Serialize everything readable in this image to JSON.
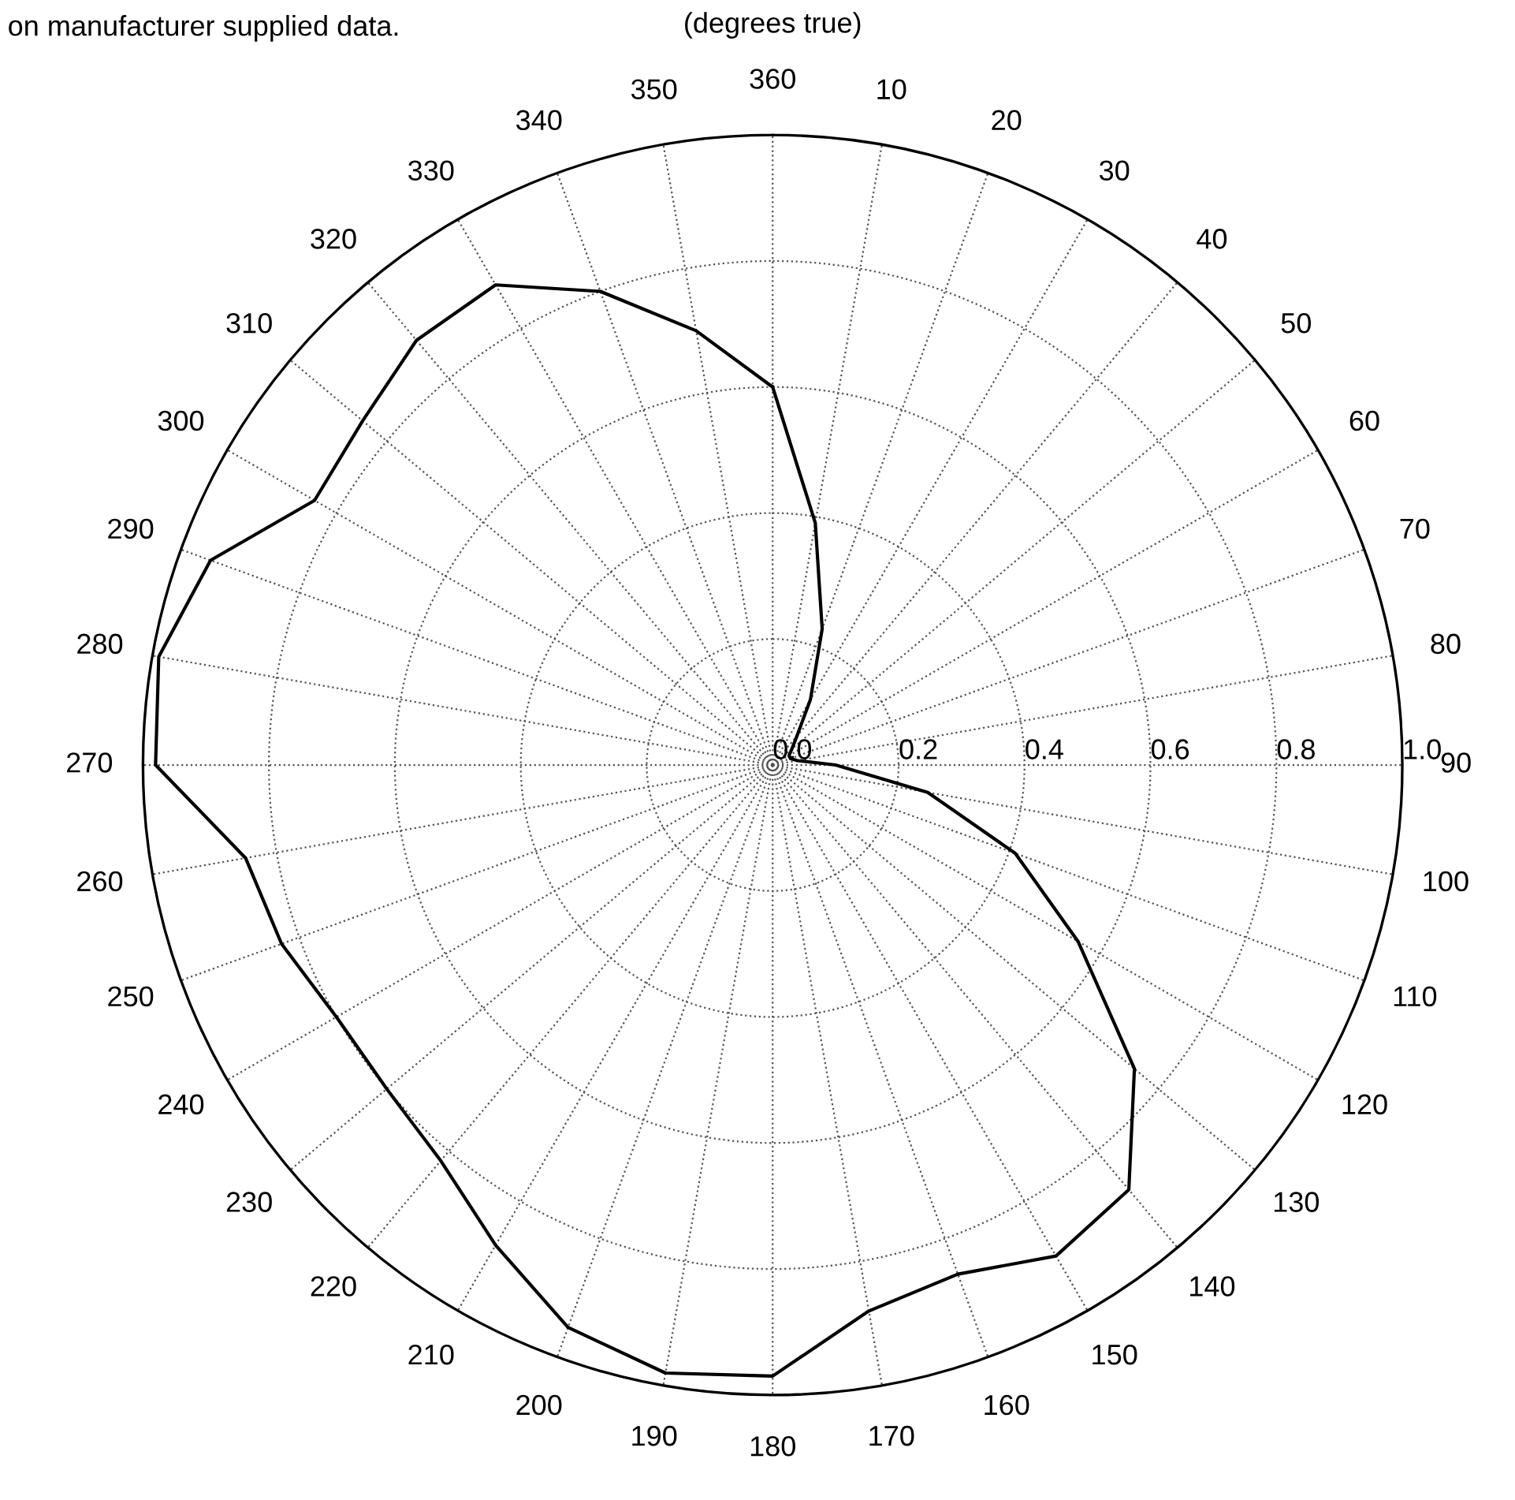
{
  "chart_data": {
    "type": "radar",
    "title": "(degrees true)",
    "annotations": [
      "on manufacturer supplied data."
    ],
    "categories": [
      "360",
      "10",
      "20",
      "30",
      "40",
      "50",
      "60",
      "70",
      "80",
      "90",
      "100",
      "110",
      "120",
      "130",
      "140",
      "150",
      "160",
      "170",
      "180",
      "190",
      "200",
      "210",
      "220",
      "230",
      "240",
      "250",
      "260",
      "270",
      "280",
      "290",
      "300",
      "310",
      "320",
      "330",
      "340",
      "350"
    ],
    "series": [
      {
        "color": "#000000",
        "values": [
          0.6,
          0.39,
          0.23,
          0.12,
          0.06,
          0.04,
          0.03,
          0.03,
          0.04,
          0.1,
          0.25,
          0.41,
          0.56,
          0.75,
          0.88,
          0.9,
          0.86,
          0.88,
          0.97,
          0.98,
          0.95,
          0.88,
          0.82,
          0.8,
          0.8,
          0.83,
          0.85,
          0.98,
          0.99,
          0.95,
          0.84,
          0.85,
          0.88,
          0.88,
          0.8,
          0.7
        ]
      }
    ],
    "ylim": [
      0,
      1
    ],
    "yticks": [
      {
        "value": 0,
        "label": "0.0"
      },
      {
        "value": 0.2,
        "label": "0.2"
      },
      {
        "value": 0.4,
        "label": "0.4"
      },
      {
        "value": 0.6,
        "label": "0.6"
      },
      {
        "value": 0.8,
        "label": "0.8"
      },
      {
        "value": 1,
        "label": "1.0"
      }
    ],
    "grid": true,
    "marker": "none",
    "line_style": "solid"
  }
}
